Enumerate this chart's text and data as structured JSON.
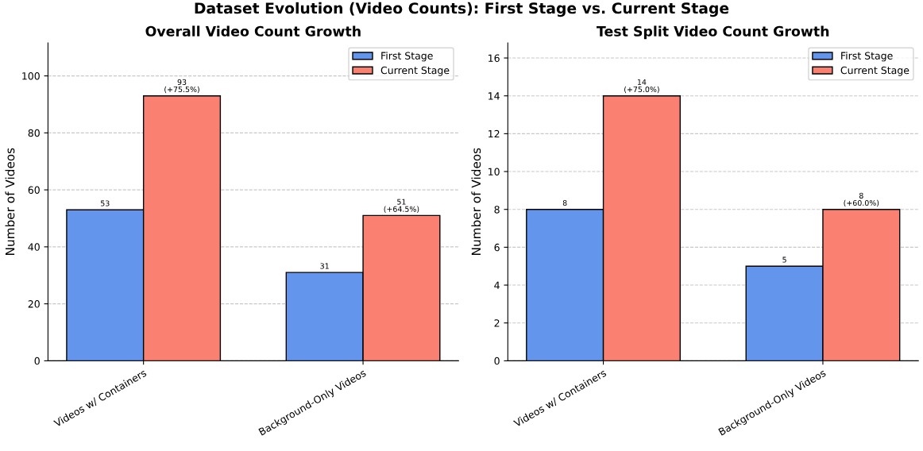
{
  "chart_data": [
    {
      "type": "bar",
      "title": "Overall Video Count Growth",
      "ylabel": "Number of Videos",
      "categories": [
        "Videos w/ Containers",
        "Background-Only Videos"
      ],
      "series": [
        {
          "name": "First Stage",
          "color": "#6495ed",
          "values": [
            53,
            31
          ],
          "value_labels": [
            "53",
            "31"
          ]
        },
        {
          "name": "Current Stage",
          "color": "#fa8072",
          "values": [
            93,
            51
          ],
          "value_labels": [
            "93\n(+75.5%)",
            "51\n(+64.5%)"
          ]
        }
      ],
      "ylim": [
        0,
        111.6
      ],
      "yticks": [
        0,
        20,
        40,
        60,
        80,
        100
      ],
      "grid": "y",
      "legend": "top right",
      "annotations": [
        "Dataset Evolution (Video Counts): First Stage vs. Current Stage"
      ]
    },
    {
      "type": "bar",
      "title": "Test Split Video Count Growth",
      "ylabel": "Number of Videos",
      "categories": [
        "Videos w/ Containers",
        "Background-Only Videos"
      ],
      "series": [
        {
          "name": "First Stage",
          "color": "#6495ed",
          "values": [
            8,
            5
          ],
          "value_labels": [
            "8",
            "5"
          ]
        },
        {
          "name": "Current Stage",
          "color": "#fa8072",
          "values": [
            14,
            8
          ],
          "value_labels": [
            "14\n(+75.0%)",
            "8\n(+60.0%)"
          ]
        }
      ],
      "ylim": [
        0,
        16.8
      ],
      "yticks": [
        0,
        2,
        4,
        6,
        8,
        10,
        12,
        14,
        16
      ],
      "grid": "y",
      "legend": "top right"
    }
  ]
}
